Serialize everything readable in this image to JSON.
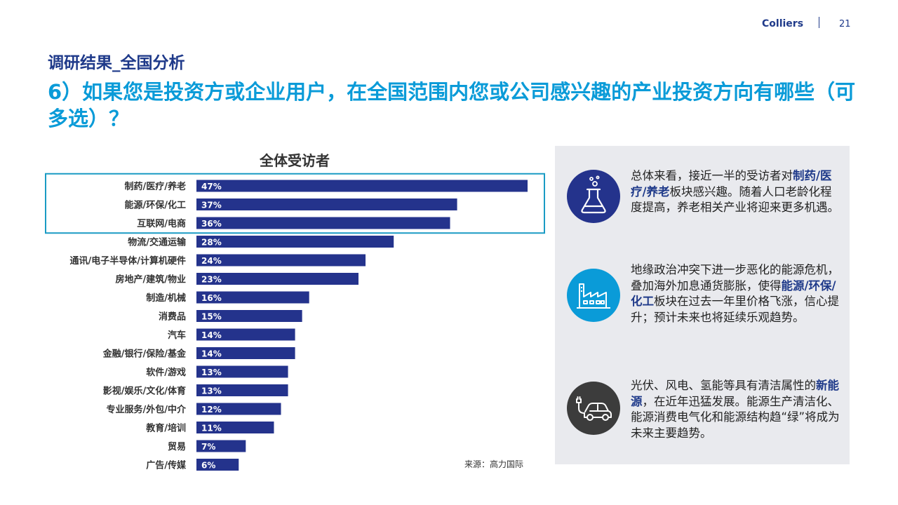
{
  "header": {
    "brand": "Colliers",
    "page_number": "21"
  },
  "section_title": "调研结果_全国分析",
  "question_title": "6）如果您是投资方或企业用户，在全国范围内您或公司感兴趣的产业投资方向有哪些（可多选）？",
  "chart_data": {
    "type": "bar",
    "orientation": "horizontal",
    "title": "全体受访者",
    "categories": [
      "制药/医疗/养老",
      "能源/环保/化工",
      "互联网/电商",
      "物流/交通运输",
      "通讯/电子半导体/计算机硬件",
      "房地产/建筑/物业",
      "制造/机械",
      "消费品",
      "汽车",
      "金融/银行/保险/基金",
      "软件/游戏",
      "影视/娱乐/文化/体育",
      "专业服务/外包/中介",
      "教育/培训",
      "贸易",
      "广告/传媒"
    ],
    "values": [
      47,
      37,
      36,
      28,
      24,
      23,
      16,
      15,
      14,
      14,
      13,
      13,
      12,
      11,
      7,
      6
    ],
    "value_labels": [
      "47%",
      "37%",
      "36%",
      "28%",
      "24%",
      "23%",
      "16%",
      "15%",
      "14%",
      "14%",
      "13%",
      "13%",
      "12%",
      "11%",
      "7%",
      "6%"
    ],
    "unit": "%",
    "xlim": [
      0,
      50
    ],
    "bar_color": "#24338c",
    "highlight_color": "#1a9bc4",
    "highlighted_categories": [
      "制药/医疗/养老",
      "能源/环保/化工",
      "互联网/电商"
    ],
    "source": "来源：高力国际"
  },
  "insights": [
    {
      "icon": "flask-icon",
      "color": "#24338c",
      "parts": [
        {
          "t": "总体来看，接近一半的受访者对",
          "b": false
        },
        {
          "t": "制药/医疗/养老",
          "b": true
        },
        {
          "t": "板块感兴趣。随着人口老龄化程度提高，养老相关产业将迎来更多机遇。",
          "b": false
        }
      ]
    },
    {
      "icon": "factory-icon",
      "color": "#0a9bd8",
      "parts": [
        {
          "t": "地缘政治冲突下进一步恶化的能源危机，叠加海外加息通货膨胀，使得",
          "b": false
        },
        {
          "t": "能源/环保/化工",
          "b": true
        },
        {
          "t": "板块在过去一年里价格飞涨，信心提升；预计未来也将延续乐观趋势。",
          "b": false
        }
      ]
    },
    {
      "icon": "electric-car-icon",
      "color": "#3c3c3c",
      "parts": [
        {
          "t": "光伏、风电、氢能等具有清洁属性的",
          "b": false
        },
        {
          "t": "新能源",
          "b": true
        },
        {
          "t": "，在近年迅猛发展。能源生产清洁化、能源消费电气化和能源结构趋“绿”将成为未来主要趋势。",
          "b": false
        }
      ]
    }
  ]
}
